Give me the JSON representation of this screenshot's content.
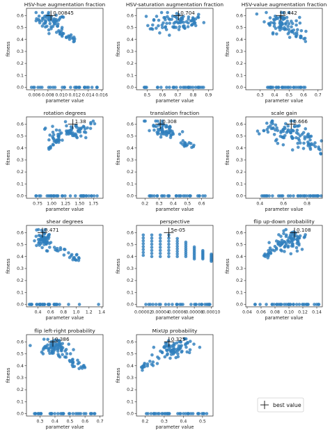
{
  "figure": {
    "legend_label": "best value"
  },
  "chart_data": [
    {
      "type": "scatter",
      "title": "HSV-hue augmentation fraction",
      "xlabel": "parameter value",
      "ylabel": "fitness",
      "xlim": [
        0.0048,
        0.0162
      ],
      "ylim": [
        -0.02,
        0.66
      ],
      "xticks": [
        0.006,
        0.008,
        0.01,
        0.012,
        0.014,
        0.016
      ],
      "xticklabels": [
        "0.006",
        "0.008",
        "0.010",
        "0.012",
        "0.014",
        "0.016"
      ],
      "yticks": [
        0.0,
        0.1,
        0.2,
        0.3,
        0.4,
        0.5,
        0.6
      ],
      "best": {
        "x": 0.00845,
        "y": 0.6,
        "label": "0.00845"
      },
      "cluster": {
        "xc": 0.0085,
        "xs": 0.0011,
        "yc": 0.55,
        "ys": 0.04,
        "n": 60,
        "slope": -12
      },
      "tail": {
        "x0": 0.0095,
        "x1": 0.012,
        "y0": 0.47,
        "y1": 0.4,
        "n": 22
      },
      "zeros": {
        "x0": 0.0055,
        "x1": 0.0155,
        "n": 30
      }
    },
    {
      "type": "scatter",
      "title": "HSV-saturation augmentation fraction",
      "xlabel": "parameter value",
      "ylabel": "fitness",
      "xlim": [
        0.43,
        0.93
      ],
      "ylim": [
        -0.02,
        0.66
      ],
      "xticks": [
        0.5,
        0.6,
        0.7,
        0.8,
        0.9
      ],
      "xticklabels": [
        "0.5",
        "0.6",
        "0.7",
        "0.8",
        "0.9"
      ],
      "yticks": [
        0.0,
        0.1,
        0.2,
        0.3,
        0.4,
        0.5,
        0.6
      ],
      "best": {
        "x": 0.704,
        "y": 0.6,
        "label": "0.704"
      },
      "cluster": {
        "xc": 0.7,
        "xs": 0.09,
        "yc": 0.55,
        "ys": 0.04,
        "n": 80,
        "slope": 0.0
      },
      "tail": {
        "x0": 0.5,
        "x1": 0.65,
        "y0": 0.5,
        "y1": 0.44,
        "n": 6
      },
      "zeros": {
        "x0": 0.48,
        "x1": 0.88,
        "n": 30
      }
    },
    {
      "type": "scatter",
      "title": "HSV-value augmentation fraction",
      "xlabel": "parameter value",
      "ylabel": "fitness",
      "xlim": [
        0.2,
        0.73
      ],
      "ylim": [
        -0.02,
        0.66
      ],
      "xticks": [
        0.3,
        0.4,
        0.5,
        0.6,
        0.7
      ],
      "xticklabels": [
        "0.3",
        "0.4",
        "0.5",
        "0.6",
        "0.7"
      ],
      "yticks": [
        0.0,
        0.1,
        0.2,
        0.3,
        0.4,
        0.5,
        0.6
      ],
      "best": {
        "x": 0.442,
        "y": 0.6,
        "label": "0.442"
      },
      "cluster": {
        "xc": 0.45,
        "xs": 0.06,
        "yc": 0.54,
        "ys": 0.05,
        "n": 75,
        "slope": -0.35
      },
      "tail": {
        "x0": 0.52,
        "x1": 0.62,
        "y0": 0.47,
        "y1": 0.4,
        "n": 12
      },
      "zeros": {
        "x0": 0.35,
        "x1": 0.62,
        "n": 30
      }
    },
    {
      "type": "scatter",
      "title": "rotation degrees",
      "xlabel": "parameter value",
      "ylabel": "fitness",
      "xlim": [
        0.55,
        1.92
      ],
      "ylim": [
        -0.02,
        0.66
      ],
      "xticks": [
        0.75,
        1.0,
        1.25,
        1.5,
        1.75
      ],
      "xticklabels": [
        "0.75",
        "1.00",
        "1.25",
        "1.50",
        "1.75"
      ],
      "yticks": [
        0.0,
        0.1,
        0.2,
        0.3,
        0.4,
        0.5,
        0.6
      ],
      "best": {
        "x": 1.38,
        "y": 0.6,
        "label": "1.38"
      },
      "cluster": {
        "xc": 1.35,
        "xs": 0.18,
        "yc": 0.54,
        "ys": 0.04,
        "n": 65,
        "slope": 0.1
      },
      "tail": {
        "x0": 0.95,
        "x1": 1.15,
        "y0": 0.4,
        "y1": 0.5,
        "n": 22
      },
      "zeros": {
        "x0": 0.7,
        "x1": 1.82,
        "n": 35
      }
    },
    {
      "type": "scatter",
      "title": "translation fraction",
      "xlabel": "parameter value",
      "ylabel": "fitness",
      "xlim": [
        0.14,
        0.68
      ],
      "ylim": [
        -0.02,
        0.66
      ],
      "xticks": [
        0.2,
        0.3,
        0.4,
        0.5,
        0.6
      ],
      "xticklabels": [
        "0.2",
        "0.3",
        "0.4",
        "0.5",
        "0.6"
      ],
      "yticks": [
        0.0,
        0.1,
        0.2,
        0.3,
        0.4,
        0.5,
        0.6
      ],
      "best": {
        "x": 0.308,
        "y": 0.6,
        "label": "0.308"
      },
      "cluster": {
        "xc": 0.33,
        "xs": 0.045,
        "yc": 0.55,
        "ys": 0.035,
        "n": 65,
        "slope": -0.5
      },
      "tail": {
        "x0": 0.45,
        "x1": 0.56,
        "y0": 0.44,
        "y1": 0.4,
        "n": 15
      },
      "zeros": {
        "x0": 0.22,
        "x1": 0.63,
        "n": 30
      }
    },
    {
      "type": "scatter",
      "title": "scale gain",
      "xlabel": "parameter value",
      "ylabel": "fitness",
      "xlim": [
        0.28,
        0.93
      ],
      "ylim": [
        -0.02,
        0.66
      ],
      "xticks": [
        0.4,
        0.6,
        0.8
      ],
      "xticklabels": [
        "0.4",
        "0.6",
        "0.8"
      ],
      "yticks": [
        0.0,
        0.1,
        0.2,
        0.3,
        0.4,
        0.5,
        0.6
      ],
      "best": {
        "x": 0.666,
        "y": 0.6,
        "label": "0.666"
      },
      "cluster": {
        "xc": 0.66,
        "xs": 0.11,
        "yc": 0.53,
        "ys": 0.05,
        "n": 90,
        "slope": -0.2
      },
      "tail": {
        "x0": 0.8,
        "x1": 0.92,
        "y0": 0.44,
        "y1": 0.36,
        "n": 15
      },
      "zeros": {
        "x0": 0.4,
        "x1": 0.92,
        "n": 35
      }
    },
    {
      "type": "scatter",
      "title": "shear degrees",
      "xlabel": "parameter value",
      "ylabel": "fitness",
      "xlim": [
        0.22,
        1.42
      ],
      "ylim": [
        -0.02,
        0.66
      ],
      "xticks": [
        0.4,
        0.6,
        0.8,
        1.0,
        1.2,
        1.4
      ],
      "xticklabels": [
        "0.4",
        "0.6",
        "0.8",
        "1.0",
        "1.2",
        "1.4"
      ],
      "yticks": [
        0.0,
        0.1,
        0.2,
        0.3,
        0.4,
        0.5,
        0.6
      ],
      "best": {
        "x": 0.471,
        "y": 0.6,
        "label": "0.471"
      },
      "cluster": {
        "xc": 0.48,
        "xs": 0.06,
        "yc": 0.54,
        "ys": 0.04,
        "n": 60,
        "slope": -0.15
      },
      "tail": {
        "x0": 0.62,
        "x1": 1.05,
        "y0": 0.47,
        "y1": 0.38,
        "n": 25
      },
      "zeros": {
        "x0": 0.25,
        "x1": 0.75,
        "n": 35,
        "extra": [
          0.88,
          1.05,
          1.35
        ]
      }
    },
    {
      "type": "scatter",
      "title": "perspective",
      "xlabel": "parameter value",
      "ylabel": "fitness",
      "xlim": [
        1.2e-05,
        0.000102
      ],
      "ylim": [
        -0.02,
        0.66
      ],
      "xticks": [
        2e-05,
        4e-05,
        6e-05,
        8e-05,
        0.0001
      ],
      "xticklabels": [
        "0.00002",
        "0.00004",
        "0.00006",
        "0.00008",
        "0.00010"
      ],
      "yticks": [
        0.0,
        0.1,
        0.2,
        0.3,
        0.4,
        0.5,
        0.6
      ],
      "best": {
        "x": 5e-05,
        "y": 0.6,
        "label": "5e-05"
      },
      "columns": {
        "xs": [
          2e-05,
          3e-05,
          4e-05,
          5e-05,
          6e-05,
          7e-05,
          8e-05,
          9e-05,
          0.0001
        ],
        "ymax": [
          0.58,
          0.58,
          0.58,
          0.58,
          0.55,
          0.52,
          0.48,
          0.45,
          0.42
        ],
        "ymin": [
          0.41,
          0.4,
          0.4,
          0.4,
          0.4,
          0.4,
          0.38,
          0.38,
          0.36
        ],
        "per": 8
      },
      "zeros": {
        "x0": 2e-05,
        "x1": 0.0001,
        "n": 30
      }
    },
    {
      "type": "scatter",
      "title": "flip up-down probability",
      "xlabel": "parameter value",
      "ylabel": "fitness",
      "xlim": [
        0.038,
        0.148
      ],
      "ylim": [
        -0.02,
        0.66
      ],
      "xticks": [
        0.04,
        0.06,
        0.08,
        0.1,
        0.12,
        0.14
      ],
      "xticklabels": [
        "0.04",
        "0.06",
        "0.08",
        "0.10",
        "0.12",
        "0.14"
      ],
      "yticks": [
        0.0,
        0.1,
        0.2,
        0.3,
        0.4,
        0.5,
        0.6
      ],
      "best": {
        "x": 0.108,
        "y": 0.6,
        "label": "0.108"
      },
      "cluster": {
        "xc": 0.103,
        "xs": 0.011,
        "yc": 0.54,
        "ys": 0.04,
        "n": 75,
        "slope": 1.2
      },
      "tail": {
        "x0": 0.062,
        "x1": 0.085,
        "y0": 0.39,
        "y1": 0.49,
        "n": 20
      },
      "zeros": {
        "x0": 0.05,
        "x1": 0.145,
        "n": 35
      }
    },
    {
      "type": "scatter",
      "title": "flip left-right probability",
      "xlabel": "parameter value",
      "ylabel": "fitness",
      "xlim": [
        0.21,
        0.72
      ],
      "ylim": [
        -0.02,
        0.66
      ],
      "xticks": [
        0.3,
        0.4,
        0.5,
        0.6,
        0.7
      ],
      "xticklabels": [
        "0.3",
        "0.4",
        "0.5",
        "0.6",
        "0.7"
      ],
      "yticks": [
        0.0,
        0.1,
        0.2,
        0.3,
        0.4,
        0.5,
        0.6
      ],
      "best": {
        "x": 0.386,
        "y": 0.6,
        "label": "0.386"
      },
      "cluster": {
        "xc": 0.4,
        "xs": 0.06,
        "yc": 0.55,
        "ys": 0.035,
        "n": 75,
        "slope": -0.2
      },
      "tail": {
        "x0": 0.48,
        "x1": 0.6,
        "y0": 0.45,
        "y1": 0.4,
        "n": 20
      },
      "zeros": {
        "x0": 0.25,
        "x1": 0.68,
        "n": 35
      }
    },
    {
      "type": "scatter",
      "title": "MixUp probability",
      "xlabel": "parameter value",
      "ylabel": "fitness",
      "xlim": [
        0.155,
        0.555
      ],
      "ylim": [
        -0.02,
        0.66
      ],
      "xticks": [
        0.2,
        0.3,
        0.4,
        0.5
      ],
      "xticklabels": [
        "0.2",
        "0.3",
        "0.4",
        "0.5"
      ],
      "yticks": [
        0.0,
        0.1,
        0.2,
        0.3,
        0.4,
        0.5,
        0.6
      ],
      "best": {
        "x": 0.325,
        "y": 0.6,
        "label": "0.325"
      },
      "cluster": {
        "xc": 0.36,
        "xs": 0.055,
        "yc": 0.54,
        "ys": 0.045,
        "n": 75,
        "slope": 0.45
      },
      "tail": {
        "x0": 0.18,
        "x1": 0.27,
        "y0": 0.38,
        "y1": 0.47,
        "n": 18
      },
      "zeros": {
        "x0": 0.19,
        "x1": 0.53,
        "n": 35
      }
    }
  ]
}
